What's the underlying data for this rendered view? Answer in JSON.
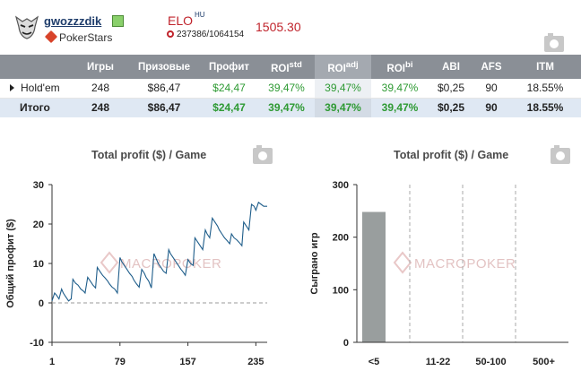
{
  "player": {
    "username": "gwozzzdik",
    "site": "PokerStars"
  },
  "elo": {
    "label": "ELO",
    "superscript": "HU",
    "rank": "237386/1064154",
    "value": "1505.30"
  },
  "stats_table": {
    "headers": [
      "",
      "Игры",
      "Призовые",
      "Профит",
      "ROI",
      "ROI",
      "ROI",
      "ABI",
      "AFS",
      "ITM"
    ],
    "header_sups": [
      "",
      "",
      "",
      "",
      "std",
      "adj",
      "bi",
      "",
      "",
      ""
    ],
    "rows": [
      [
        "Hold'em",
        "248",
        "$86,47",
        "$24,47",
        "39,47%",
        "39,47%",
        "39,47%",
        "$0,25",
        "90",
        "18.55%"
      ]
    ],
    "total": [
      "Итого",
      "248",
      "$86,47",
      "$24,47",
      "39,47%",
      "39,47%",
      "39,47%",
      "$0,25",
      "90",
      "18.55%"
    ]
  },
  "chart_left": {
    "title": "Total profit ($) / Game",
    "watermark": "MACROPOKER"
  },
  "chart_right": {
    "title": "Total profit ($) / Game",
    "watermark": "MACROPOKER"
  },
  "colors": {
    "header_bg": "#8a8f96",
    "total_row_bg": "#dfe8f3",
    "profit_green": "#2e9a33",
    "elo_red": "#c0242c",
    "line": "#1e5d8a",
    "bar": "#999e9e"
  },
  "chart_data": [
    {
      "type": "line",
      "title": "Total profit ($) / Game",
      "xlabel": "",
      "ylabel": "Общий профит ($)",
      "xlim": [
        1,
        248
      ],
      "ylim": [
        -10,
        30
      ],
      "xticks": [
        "1",
        "79",
        "157",
        "235"
      ],
      "yticks": [
        "-10",
        "0",
        "10",
        "20",
        "30"
      ],
      "grid": "dashed horizontal at 0",
      "x": [
        1,
        4,
        6,
        9,
        12,
        14,
        17,
        20,
        23,
        25,
        28,
        31,
        34,
        37,
        39,
        42,
        45,
        48,
        51,
        53,
        56,
        59,
        62,
        65,
        67,
        70,
        73,
        76,
        79,
        81,
        84,
        87,
        90,
        93,
        95,
        98,
        101,
        104,
        107,
        109,
        112,
        115,
        118,
        121,
        123,
        126,
        129,
        132,
        135,
        137,
        140,
        143,
        146,
        149,
        151,
        154,
        157,
        160,
        163,
        165,
        168,
        171,
        174,
        177,
        179,
        182,
        185,
        188,
        191,
        193,
        196,
        199,
        202,
        205,
        207,
        210,
        213,
        216,
        219,
        221,
        224,
        227,
        230,
        233,
        235,
        238,
        241,
        244,
        248
      ],
      "y": [
        0.5,
        2.5,
        2,
        1,
        3.5,
        2.5,
        1.5,
        0.5,
        1,
        6,
        5,
        4.5,
        3.5,
        3,
        2.5,
        6.5,
        5.5,
        4.5,
        3.8,
        9,
        8,
        7,
        6.3,
        5.5,
        4.8,
        4,
        3.5,
        2.5,
        11.5,
        10.5,
        9.5,
        8.5,
        7.5,
        6.7,
        5.8,
        4.8,
        4,
        8.5,
        7.5,
        6.5,
        5.5,
        3.8,
        12.5,
        11,
        10,
        9,
        8,
        7.5,
        13.5,
        12.5,
        11.5,
        10.5,
        9.5,
        8.5,
        8,
        7,
        11,
        10,
        9.5,
        16.5,
        15.5,
        14.5,
        13.5,
        18.5,
        17.5,
        16.5,
        21.5,
        20.5,
        19.5,
        18.5,
        17.5,
        16.5,
        15.8,
        15,
        17.5,
        16.5,
        16,
        15.3,
        14.5,
        20.5,
        19.5,
        18.5,
        25,
        24.5,
        23.5,
        25.5,
        25,
        24.5,
        24.5
      ]
    },
    {
      "type": "bar",
      "title": "Total profit ($) / Game",
      "xlabel": "",
      "ylabel": "Сыграно игр",
      "categories": [
        "<5",
        "11-22",
        "50-100",
        "500+"
      ],
      "values": [
        248,
        0,
        0,
        0
      ],
      "ylim": [
        0,
        300
      ],
      "yticks": [
        "0",
        "100",
        "200",
        "300"
      ],
      "grid": "dashed vertical"
    }
  ]
}
